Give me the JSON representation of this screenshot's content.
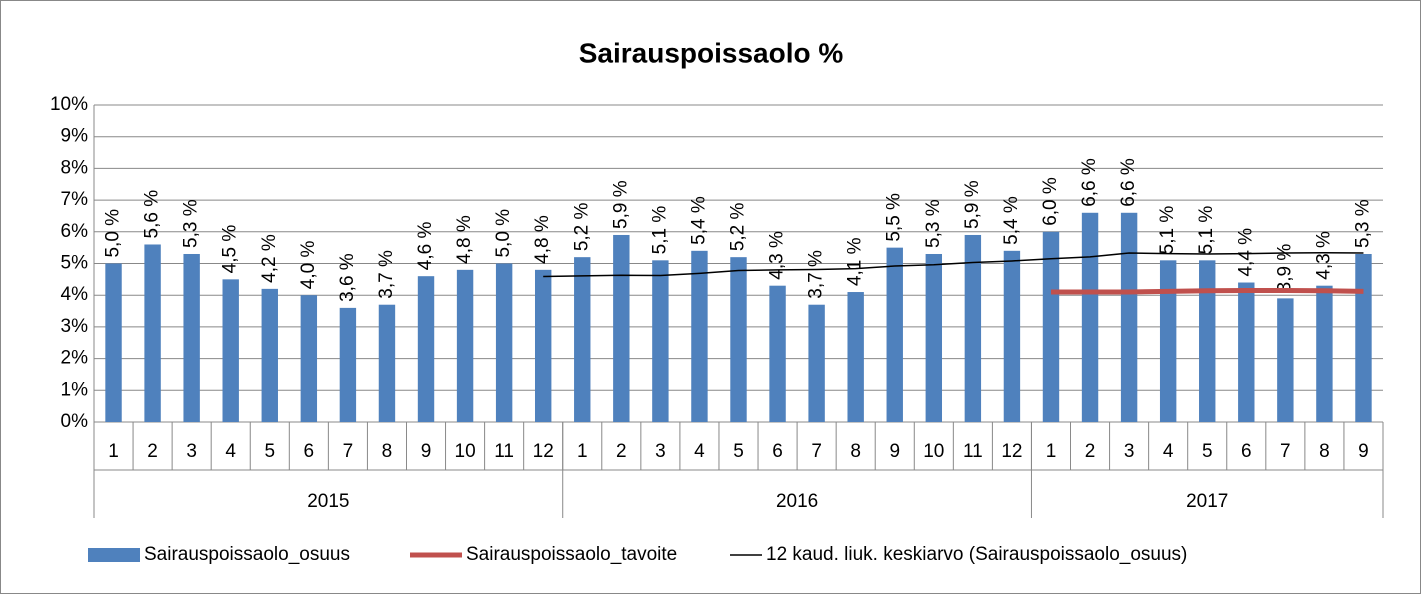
{
  "chart_data": {
    "type": "bar",
    "title": "Sairauspoissaolo %",
    "categories": [
      "1",
      "2",
      "3",
      "4",
      "5",
      "6",
      "7",
      "8",
      "9",
      "10",
      "11",
      "12",
      "1",
      "2",
      "3",
      "4",
      "5",
      "6",
      "7",
      "8",
      "9",
      "10",
      "11",
      "12",
      "1",
      "2",
      "3",
      "4",
      "5",
      "6",
      "7",
      "8",
      "9"
    ],
    "groups": [
      {
        "name": "2015",
        "size": 12
      },
      {
        "name": "2016",
        "size": 12
      },
      {
        "name": "2017",
        "size": 9
      }
    ],
    "series": [
      {
        "name": "Sairauspoissaolo_osuus",
        "type": "bar",
        "color": "#4f81bd",
        "values": [
          5.0,
          5.6,
          5.3,
          4.5,
          4.2,
          4.0,
          3.6,
          3.7,
          4.6,
          4.8,
          5.0,
          4.8,
          5.2,
          5.9,
          5.1,
          5.4,
          5.2,
          4.3,
          3.7,
          4.1,
          5.5,
          5.3,
          5.9,
          5.4,
          6.0,
          6.6,
          6.6,
          5.1,
          5.1,
          4.4,
          3.9,
          4.3,
          5.3
        ],
        "value_labels": [
          "5,0 %",
          "5,6 %",
          "5,3 %",
          "4,5 %",
          "4,2 %",
          "4,0 %",
          "3,6 %",
          "3,7 %",
          "4,6 %",
          "4,8 %",
          "5,0 %",
          "4,8 %",
          "5,2 %",
          "5,9 %",
          "5,1 %",
          "5,4 %",
          "5,2 %",
          "4,3 %",
          "3,7 %",
          "4,1 %",
          "5,5 %",
          "5,3 %",
          "5,9 %",
          "5,4 %",
          "6,0 %",
          "6,6 %",
          "6,6 %",
          "5,1 %",
          "5,1 %",
          "4,4 %",
          "3,9 %",
          "4,3 %",
          "5,3 %"
        ]
      },
      {
        "name": "Sairauspoissaolo_tavoite",
        "type": "line",
        "color": "#c0504d",
        "values": [
          null,
          null,
          null,
          null,
          null,
          null,
          null,
          null,
          null,
          null,
          null,
          null,
          null,
          null,
          null,
          null,
          null,
          null,
          null,
          null,
          null,
          null,
          null,
          null,
          4.1,
          4.1,
          4.1,
          4.12,
          4.14,
          4.15,
          4.15,
          4.14,
          4.12
        ]
      },
      {
        "name": "12 kaud. liuk. keskiarvo (Sairauspoissaolo_osuus)",
        "type": "line",
        "color": "#000000",
        "values": [
          null,
          null,
          null,
          null,
          null,
          null,
          null,
          null,
          null,
          null,
          null,
          4.59,
          4.61,
          4.63,
          4.62,
          4.69,
          4.78,
          4.8,
          4.81,
          4.84,
          4.92,
          4.96,
          5.03,
          5.08,
          5.15,
          5.21,
          5.33,
          5.31,
          5.3,
          5.31,
          5.33,
          5.34,
          5.33
        ]
      }
    ],
    "ylim": [
      0,
      10
    ],
    "yticks": [
      {
        "value": 0,
        "label": "0%"
      },
      {
        "value": 1,
        "label": "1%"
      },
      {
        "value": 2,
        "label": "2%"
      },
      {
        "value": 3,
        "label": "3%"
      },
      {
        "value": 4,
        "label": "4%"
      },
      {
        "value": 5,
        "label": "5%"
      },
      {
        "value": 6,
        "label": "6%"
      },
      {
        "value": 7,
        "label": "7%"
      },
      {
        "value": 8,
        "label": "8%"
      },
      {
        "value": 9,
        "label": "9%"
      },
      {
        "value": 10,
        "label": "10%"
      }
    ],
    "grid": true,
    "legend": "bottom"
  }
}
